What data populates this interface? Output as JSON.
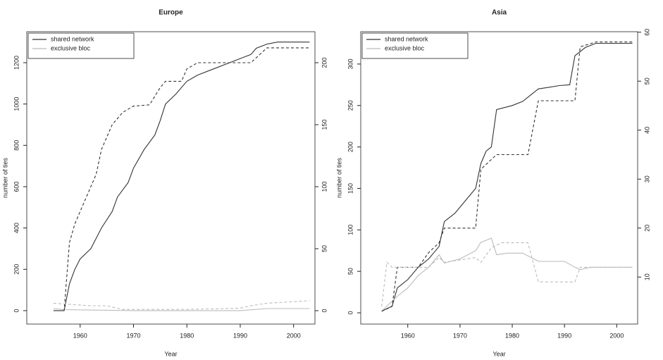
{
  "chart_data": [
    {
      "type": "line",
      "title": "Europe",
      "xlabel": "Year",
      "ylabel": "number of ties",
      "xlim": [
        1950,
        2004
      ],
      "xticks": [
        1960,
        1970,
        1980,
        1990,
        2000
      ],
      "ylim": [
        -65,
        1350
      ],
      "yticks": [
        0,
        200,
        400,
        600,
        800,
        1000,
        1200
      ],
      "y2lim": [
        -10.8,
        225
      ],
      "y2ticks": [
        0,
        50,
        100,
        150,
        200
      ],
      "legend": "top-left",
      "series": [
        {
          "name": "shared network",
          "color": "#333333",
          "dash": false,
          "x": [
            1955,
            1957,
            1958,
            1959,
            1960,
            1962,
            1964,
            1966,
            1967,
            1969,
            1970,
            1972,
            1974,
            1975,
            1976,
            1978,
            1979,
            1980,
            1982,
            1985,
            1988,
            1990,
            1992,
            1993,
            1995,
            1997,
            2003
          ],
          "values": [
            0,
            0,
            130,
            200,
            250,
            300,
            400,
            480,
            550,
            620,
            690,
            780,
            850,
            920,
            1000,
            1050,
            1080,
            1110,
            1140,
            1170,
            1200,
            1220,
            1240,
            1270,
            1290,
            1300,
            1300
          ]
        },
        {
          "name": "exclusive bloc",
          "color": "#bbbbbb",
          "dash": false,
          "x": [
            1955,
            1957,
            1962,
            1970,
            1980,
            1990,
            1995,
            2003
          ],
          "values": [
            10,
            5,
            3,
            0,
            0,
            0,
            10,
            10
          ]
        },
        {
          "color": "#333333",
          "dash": true,
          "axis": "y2",
          "x": [
            1955,
            1957,
            1958,
            1959,
            1961,
            1963,
            1964,
            1966,
            1968,
            1970,
            1973,
            1975,
            1976,
            1979,
            1980,
            1982,
            1992,
            1995,
            2003
          ],
          "values": [
            0,
            0,
            55,
            70,
            90,
            110,
            130,
            150,
            160,
            165,
            166,
            180,
            185,
            185,
            195,
            200,
            200,
            212,
            212
          ]
        },
        {
          "color": "#bbbbbb",
          "dash": true,
          "axis": "y2",
          "x": [
            1955,
            1962,
            1965,
            1968,
            1980,
            1990,
            1992,
            1995,
            2003
          ],
          "values": [
            6,
            4,
            4,
            1,
            1,
            2,
            4,
            6,
            8
          ]
        }
      ]
    },
    {
      "type": "line",
      "title": "Asia",
      "xlabel": "Year",
      "ylabel": "number of ties",
      "xlim": [
        1951,
        2004
      ],
      "xticks": [
        1960,
        1970,
        1980,
        1990,
        2000
      ],
      "ylim": [
        -13.6,
        339
      ],
      "yticks": [
        0,
        50,
        100,
        150,
        200,
        250,
        300
      ],
      "y2lim": [
        0.4,
        60.1
      ],
      "y2ticks": [
        10,
        20,
        30,
        40,
        50,
        60
      ],
      "legend": "top-left",
      "series": [
        {
          "name": "shared network",
          "color": "#333333",
          "dash": false,
          "x": [
            1955,
            1957,
            1958,
            1960,
            1962,
            1964,
            1966,
            1967,
            1969,
            1971,
            1973,
            1974,
            1975,
            1976,
            1977,
            1980,
            1982,
            1984,
            1985,
            1987,
            1989,
            1991,
            1992,
            1994,
            1996,
            2003
          ],
          "values": [
            2,
            8,
            30,
            40,
            55,
            65,
            80,
            110,
            120,
            135,
            150,
            180,
            195,
            200,
            245,
            250,
            255,
            265,
            270,
            272,
            274,
            275,
            310,
            320,
            325,
            325
          ]
        },
        {
          "name": "exclusive bloc",
          "color": "#bbbbbb",
          "dash": false,
          "x": [
            1955,
            1958,
            1960,
            1962,
            1964,
            1966,
            1967,
            1970,
            1973,
            1974,
            1976,
            1977,
            1979,
            1982,
            1985,
            1990,
            1992,
            1993,
            1995,
            2003
          ],
          "values": [
            2,
            20,
            30,
            45,
            55,
            70,
            60,
            65,
            75,
            85,
            90,
            70,
            72,
            72,
            62,
            62,
            55,
            52,
            55,
            55
          ]
        },
        {
          "color": "#333333",
          "dash": true,
          "axis": "y2",
          "x": [
            1955,
            1957,
            1958,
            1962,
            1964,
            1966,
            1967,
            1973,
            1974,
            1976,
            1977,
            1983,
            1985,
            1992,
            1993,
            1996,
            2003
          ],
          "values": [
            3,
            4,
            12,
            12,
            15,
            17,
            20,
            20,
            32,
            34,
            35,
            35,
            46,
            46,
            57,
            58,
            58
          ]
        },
        {
          "color": "#bbbbbb",
          "dash": true,
          "axis": "y2",
          "x": [
            1955,
            1956,
            1957,
            1961,
            1964,
            1966,
            1967,
            1973,
            1974,
            1976,
            1978,
            1983,
            1985,
            1992,
            1993,
            2003
          ],
          "values": [
            4,
            13,
            12,
            12,
            12,
            14,
            13,
            14,
            13,
            16,
            17,
            17,
            9,
            9,
            12,
            12
          ]
        }
      ]
    }
  ]
}
